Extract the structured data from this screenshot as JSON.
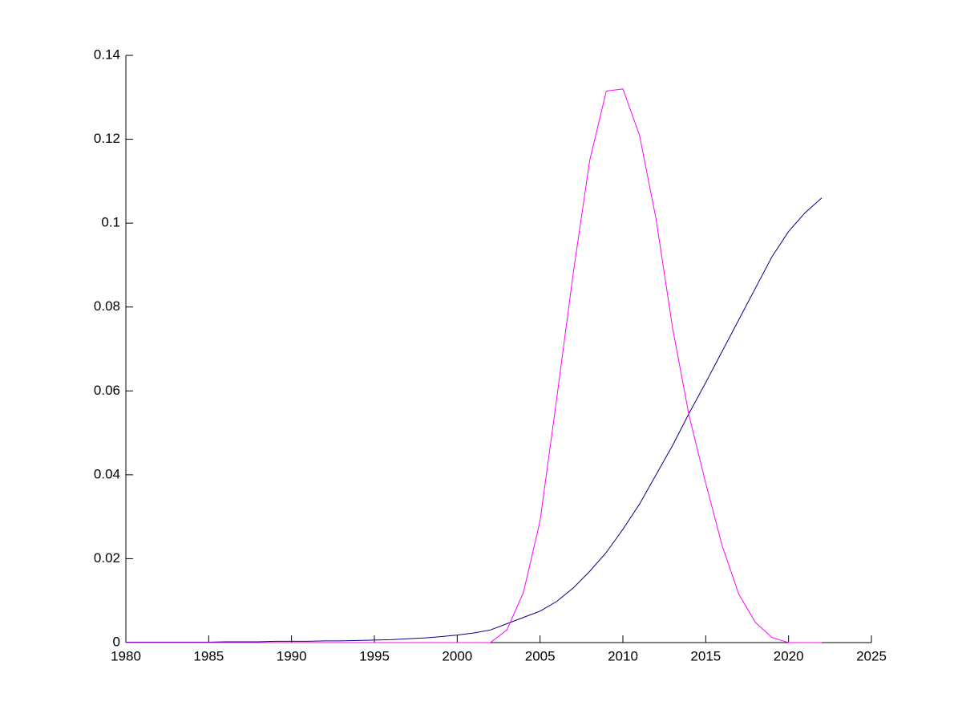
{
  "chart_data": {
    "type": "line",
    "x": [
      1980,
      1981,
      1982,
      1983,
      1984,
      1985,
      1986,
      1987,
      1988,
      1989,
      1990,
      1991,
      1992,
      1993,
      1994,
      1995,
      1996,
      1997,
      1998,
      1999,
      2000,
      2001,
      2002,
      2003,
      2004,
      2005,
      2006,
      2007,
      2008,
      2009,
      2010,
      2011,
      2012,
      2013,
      2014,
      2015,
      2016,
      2017,
      2018,
      2019,
      2020,
      2021,
      2022
    ],
    "series": [
      {
        "color": "#00008b",
        "values": [
          0.0001,
          0.0001,
          0.0001,
          0.0001,
          0.0001,
          0.0001,
          0.0002,
          0.0002,
          0.0002,
          0.0003,
          0.0003,
          0.0003,
          0.0004,
          0.0004,
          0.0005,
          0.0006,
          0.0007,
          0.0009,
          0.0011,
          0.0014,
          0.0018,
          0.0023,
          0.003,
          0.0045,
          0.006,
          0.0075,
          0.0098,
          0.013,
          0.017,
          0.0215,
          0.027,
          0.033,
          0.04,
          0.047,
          0.0547,
          0.062,
          0.0695,
          0.077,
          0.0845,
          0.092,
          0.098,
          0.1025,
          0.106
        ]
      },
      {
        "color": "#ff00ff",
        "values": [
          0,
          0,
          0,
          0,
          0,
          0,
          0,
          0,
          0,
          0,
          0,
          0,
          0,
          0,
          0,
          0,
          0,
          0,
          0,
          0,
          0,
          0,
          0,
          0.003,
          0.012,
          0.029,
          0.058,
          0.088,
          0.115,
          0.1315,
          0.132,
          0.121,
          0.101,
          0.075,
          0.054,
          0.038,
          0.023,
          0.0115,
          0.0048,
          0.0012,
          0,
          0,
          0
        ]
      }
    ],
    "xlim": [
      1980,
      2025
    ],
    "xticks": [
      1980,
      1985,
      1990,
      1995,
      2000,
      2005,
      2010,
      2015,
      2020,
      2025
    ],
    "ylim": [
      0,
      0.14
    ],
    "yticks": [
      0,
      0.02,
      0.04,
      0.06,
      0.08,
      0.1,
      0.12,
      0.14
    ]
  }
}
